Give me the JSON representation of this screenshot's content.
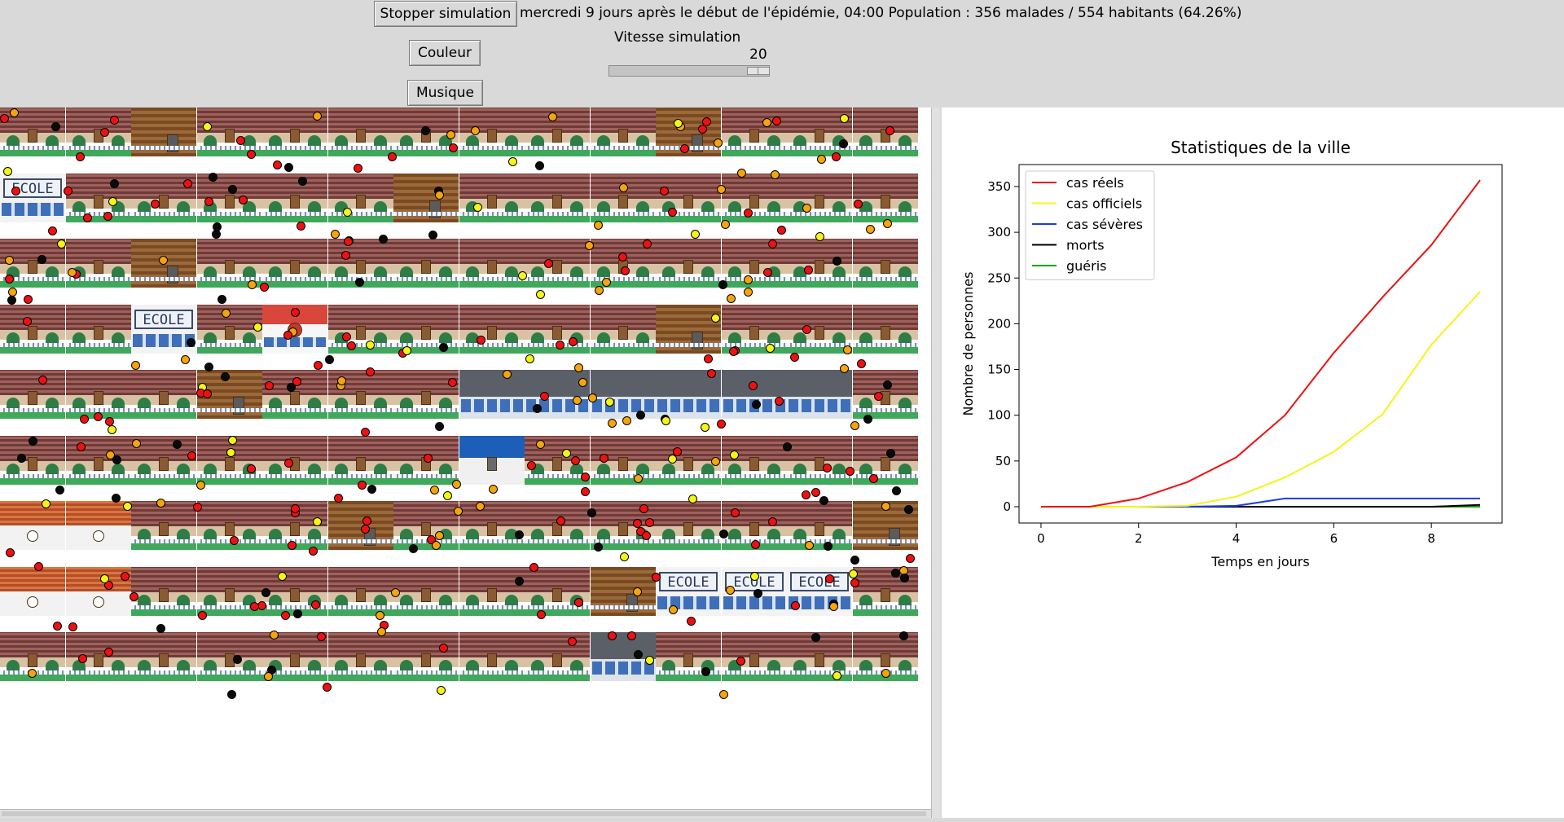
{
  "toolbar": {
    "stop_label": "Stopper simulation",
    "color_label": "Couleur",
    "music_label": "Musique",
    "status": "mercredi 9 jours après le début de l'épidémie, 04:00 Population : 356 malades / 554 habitants (64.26%)",
    "speed_label": "Vitesse simulation",
    "speed_value": "20",
    "speed_level": 1.0
  },
  "map": {
    "school_sign": "ECOLE",
    "building_types": [
      "house",
      "school",
      "town-hall",
      "hospital",
      "office",
      "shop",
      "apartment"
    ],
    "legend_colors": {
      "infected": "#ee1111",
      "severe_or_symptomatic": "#f5a40c",
      "official_case": "#f4f416",
      "dead": "#0a0a0a"
    }
  },
  "chart_data": {
    "type": "line",
    "title": "Statistiques de la ville",
    "xlabel": "Temps en jours",
    "ylabel": "Nombre de personnes",
    "x": [
      0,
      1,
      2,
      3,
      4,
      5,
      6,
      7,
      8,
      9
    ],
    "xticks": [
      0,
      2,
      4,
      6,
      8
    ],
    "yticks": [
      0,
      50,
      100,
      150,
      200,
      250,
      300,
      350
    ],
    "xlim": [
      -0.45,
      9.45
    ],
    "ylim": [
      -17.8,
      374
    ],
    "grid": false,
    "legend_position": "top-left",
    "series": [
      {
        "name": "cas réels",
        "color": "#ee1111",
        "values": [
          0,
          0,
          9,
          27,
          54,
          100,
          168,
          229,
          286,
          357
        ]
      },
      {
        "name": "cas officiels",
        "color": "#f4f416",
        "values": [
          0,
          0,
          0,
          1,
          11,
          32,
          60,
          101,
          177,
          235
        ]
      },
      {
        "name": "cas sévères",
        "color": "#1a3ee8",
        "values": [
          0,
          0,
          0,
          0,
          1,
          9,
          9,
          9,
          9,
          9
        ]
      },
      {
        "name": "morts",
        "color": "#000000",
        "values": [
          0,
          0,
          0,
          0,
          0,
          0,
          0,
          0,
          0,
          2
        ]
      },
      {
        "name": "guéris",
        "color": "#12a312",
        "values": [
          0,
          0,
          0,
          0,
          0,
          0,
          0,
          0,
          0,
          0
        ]
      }
    ]
  }
}
